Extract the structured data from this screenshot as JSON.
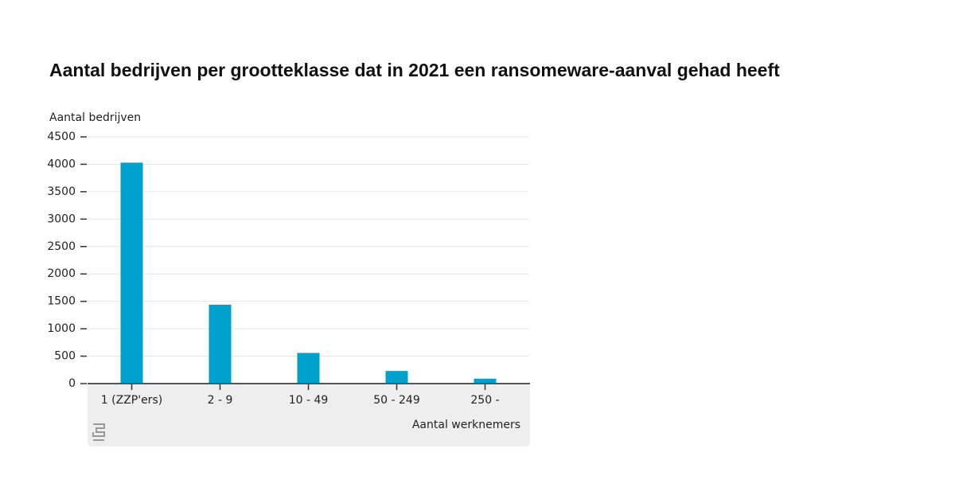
{
  "chart_data": {
    "type": "bar",
    "title": "Aantal bedrijven per grootteklasse dat in 2021 een ransomeware-aanval gehad heeft",
    "ylabel": "Aantal bedrijven",
    "xlabel": "Aantal werknemers",
    "categories": [
      "1 (ZZP'ers)",
      "2 - 9",
      "10 - 49",
      "50 - 249",
      "250 -"
    ],
    "values": [
      4030,
      1440,
      560,
      230,
      90
    ],
    "color": "#00a1cd",
    "ylim": [
      0,
      4500
    ],
    "yticks": [
      0,
      500,
      1000,
      1500,
      2000,
      2500,
      3000,
      3500,
      4000,
      4500
    ],
    "grid": true
  }
}
